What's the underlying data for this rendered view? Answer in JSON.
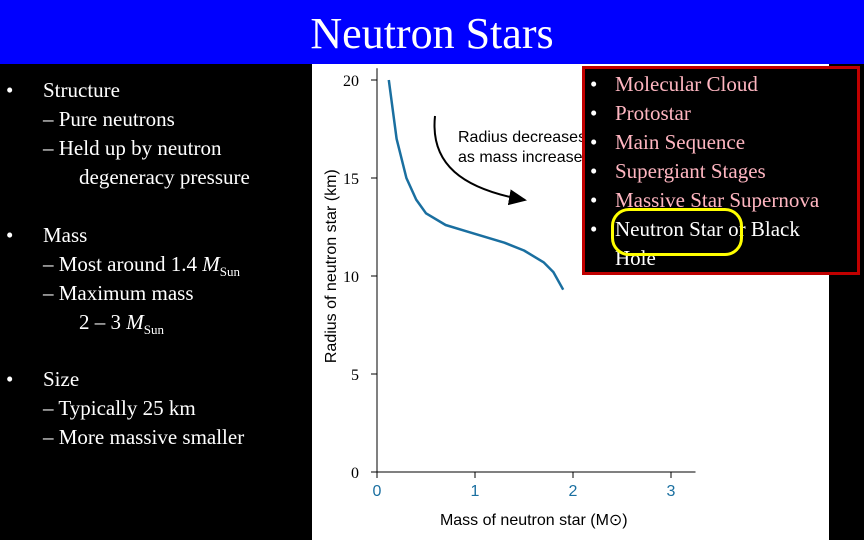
{
  "slide": {
    "title": "Neutron Stars"
  },
  "left_bullets": {
    "structure": {
      "bullet": "•",
      "heading": "Structure",
      "items": [
        "– Pure neutrons",
        "– Held up by neutron",
        "degeneracy pressure"
      ]
    },
    "mass": {
      "bullet": "•",
      "heading": "Mass",
      "item1_prefix": "– Most around 1.4 ",
      "item1_M": "M",
      "item1_sub": "Sun",
      "item2": "– Maximum mass",
      "item3_prefix": "2 – 3 ",
      "item3_M": "M",
      "item3_sub": "Sun"
    },
    "size": {
      "bullet": "•",
      "heading": "Size",
      "items": [
        "– Typically 25 km",
        "– More massive smaller"
      ]
    }
  },
  "chart_data": {
    "type": "line",
    "xlabel": "Mass of neutron star (M⊙)",
    "ylabel": "Radius of neutron star (km)",
    "xlim": [
      0,
      3.2
    ],
    "ylim": [
      0,
      21
    ],
    "x_ticks": [
      "0",
      "1",
      "2",
      "3"
    ],
    "y_ticks": [
      "0",
      "5",
      "10",
      "15",
      "20"
    ],
    "annotation": [
      "Radius decreases",
      "as mass increases"
    ],
    "series": [
      {
        "x": [
          0.12,
          0.2,
          0.3,
          0.4,
          0.5,
          0.7,
          0.9,
          1.1,
          1.3,
          1.5,
          1.7,
          1.8,
          1.9
        ],
        "values": [
          20.0,
          17.0,
          15.0,
          13.9,
          13.2,
          12.6,
          12.3,
          12.0,
          11.7,
          11.3,
          10.7,
          10.2,
          9.3
        ]
      }
    ]
  },
  "right_list": {
    "items": [
      {
        "bullet": "•",
        "text": "Molecular Cloud",
        "color": "#ffb6c1"
      },
      {
        "bullet": "•",
        "text": "Protostar",
        "color": "#ffb6c1"
      },
      {
        "bullet": "•",
        "text": "Main Sequence",
        "color": "#ffb6c1"
      },
      {
        "bullet": "•",
        "text": "Supergiant Stages",
        "color": "#ffb6c1"
      },
      {
        "bullet": "•",
        "text": "Massive Star Supernova",
        "color": "#ffb6c1"
      },
      {
        "bullet": "•",
        "text": "Neutron Star or Black",
        "color": "#ffffff"
      }
    ],
    "continuation": "Hole"
  },
  "colors": {
    "title_bar": "#0000ff",
    "curve": "#1a6fa0",
    "box_border": "#c00000",
    "highlight": "#ffff00"
  }
}
